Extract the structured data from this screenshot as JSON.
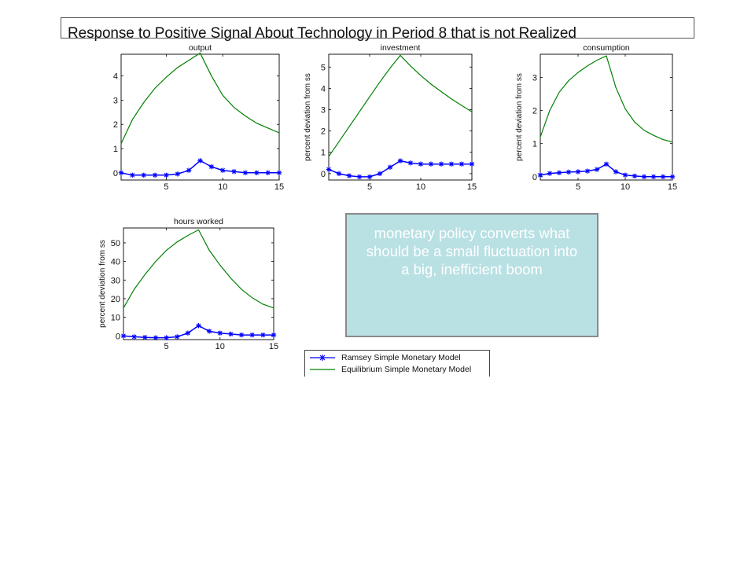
{
  "slide": {
    "title": "Response to Positive Signal About Technology in Period 8 that is not Realized",
    "callout": "monetary policy converts what should be a small fluctuation into a big, inefficient boom"
  },
  "legend": {
    "placement": "bottom-center",
    "entries": [
      {
        "label": "Ramsey Simple Monetary Model",
        "color": "#0000ff",
        "marker": "asterisk"
      },
      {
        "label": "Equilibrium Simple Monetary Model",
        "color": "#008000",
        "marker": "none"
      }
    ]
  },
  "colors": {
    "ramsey": "#0000ff",
    "equilibrium": "#008000",
    "callout_bg": "#b9e0e3"
  },
  "chart_data": [
    {
      "id": "output",
      "type": "line",
      "title": "output",
      "ylabel": "",
      "xlim": [
        1,
        15
      ],
      "ylim": [
        -0.3,
        4.9
      ],
      "xticks": [
        5,
        10,
        15
      ],
      "yticks": [
        0,
        1,
        2,
        3,
        4
      ],
      "x": [
        1,
        2,
        3,
        4,
        5,
        6,
        7,
        8,
        9,
        10,
        11,
        12,
        13,
        14,
        15
      ],
      "series": [
        {
          "name": "Ramsey Simple Monetary Model",
          "values": [
            0.0,
            -0.1,
            -0.1,
            -0.1,
            -0.1,
            -0.05,
            0.1,
            0.5,
            0.25,
            0.1,
            0.05,
            0.0,
            0.0,
            0.0,
            0.0
          ]
        },
        {
          "name": "Equilibrium Simple Monetary Model",
          "values": [
            1.2,
            2.2,
            2.9,
            3.5,
            3.95,
            4.35,
            4.65,
            4.95,
            4.0,
            3.2,
            2.7,
            2.35,
            2.05,
            1.85,
            1.65
          ]
        }
      ]
    },
    {
      "id": "investment",
      "type": "line",
      "title": "investment",
      "ylabel": "percent deviation from ss",
      "xlim": [
        1,
        15
      ],
      "ylim": [
        -0.3,
        5.6
      ],
      "xticks": [
        5,
        10,
        15
      ],
      "yticks": [
        0,
        1,
        2,
        3,
        4,
        5
      ],
      "x": [
        1,
        2,
        3,
        4,
        5,
        6,
        7,
        8,
        9,
        10,
        11,
        12,
        13,
        14,
        15
      ],
      "series": [
        {
          "name": "Ramsey Simple Monetary Model",
          "values": [
            0.2,
            0.0,
            -0.1,
            -0.15,
            -0.15,
            0.0,
            0.3,
            0.6,
            0.5,
            0.45,
            0.45,
            0.45,
            0.45,
            0.45,
            0.45
          ]
        },
        {
          "name": "Equilibrium Simple Monetary Model",
          "values": [
            0.8,
            1.5,
            2.2,
            2.9,
            3.6,
            4.3,
            4.95,
            5.55,
            5.05,
            4.6,
            4.2,
            3.85,
            3.5,
            3.2,
            2.9
          ]
        }
      ]
    },
    {
      "id": "consumption",
      "type": "line",
      "title": "consumption",
      "ylabel": "percent deviation from ss",
      "xlim": [
        1,
        15
      ],
      "ylim": [
        -0.1,
        3.7
      ],
      "xticks": [
        5,
        10,
        15
      ],
      "yticks": [
        0,
        1,
        2,
        3
      ],
      "x": [
        1,
        2,
        3,
        4,
        5,
        6,
        7,
        8,
        9,
        10,
        11,
        12,
        13,
        14,
        15
      ],
      "series": [
        {
          "name": "Ramsey Simple Monetary Model",
          "values": [
            0.05,
            0.1,
            0.12,
            0.14,
            0.15,
            0.17,
            0.22,
            0.38,
            0.15,
            0.05,
            0.02,
            0.0,
            0.0,
            0.0,
            0.0
          ]
        },
        {
          "name": "Equilibrium Simple Monetary Model",
          "values": [
            1.2,
            2.0,
            2.55,
            2.9,
            3.15,
            3.35,
            3.52,
            3.65,
            2.7,
            2.05,
            1.65,
            1.4,
            1.25,
            1.12,
            1.05
          ]
        }
      ]
    },
    {
      "id": "hours-worked",
      "type": "line",
      "title": "hours worked",
      "ylabel": "percent deviation from ss",
      "xlim": [
        1,
        15
      ],
      "ylim": [
        -2,
        58
      ],
      "xticks": [
        5,
        10,
        15
      ],
      "yticks": [
        0,
        10,
        20,
        30,
        40,
        50
      ],
      "x": [
        1,
        2,
        3,
        4,
        5,
        6,
        7,
        8,
        9,
        10,
        11,
        12,
        13,
        14,
        15
      ],
      "series": [
        {
          "name": "Ramsey Simple Monetary Model",
          "values": [
            0,
            -0.5,
            -0.8,
            -1.0,
            -1.0,
            -0.5,
            1.5,
            5.5,
            2.5,
            1.5,
            1.0,
            0.5,
            0.5,
            0.5,
            0.5
          ]
        },
        {
          "name": "Equilibrium Simple Monetary Model",
          "values": [
            15,
            25,
            33,
            40,
            46,
            50.5,
            54,
            57,
            46,
            38,
            31,
            25,
            20.5,
            17,
            15
          ]
        }
      ]
    }
  ]
}
